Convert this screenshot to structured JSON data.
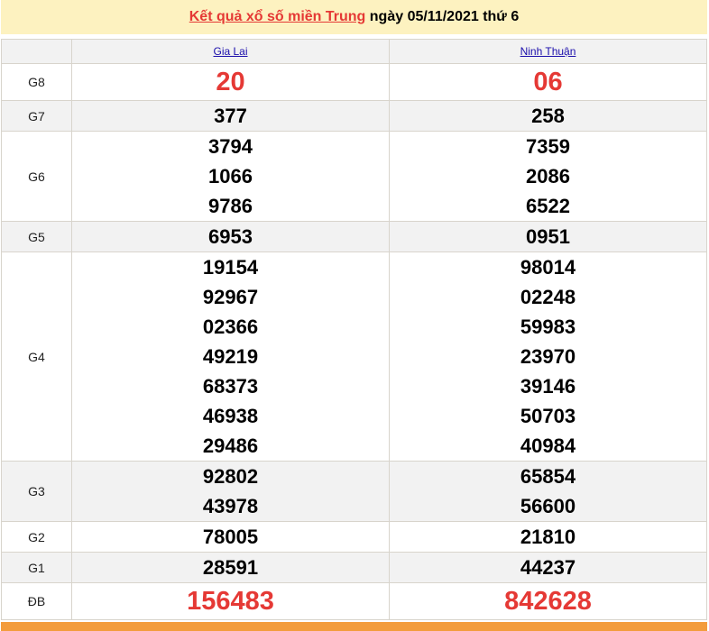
{
  "header": {
    "title_link": "Kết quả xổ số miền Trung",
    "title_rest": " ngày 05/11/2021 thứ 6"
  },
  "provinces": [
    "Gia Lai",
    "Ninh Thuận"
  ],
  "rows": [
    {
      "label": "G8",
      "highlight": true,
      "values": [
        [
          "20"
        ],
        [
          "06"
        ]
      ]
    },
    {
      "label": "G7",
      "values": [
        [
          "377"
        ],
        [
          "258"
        ]
      ]
    },
    {
      "label": "G6",
      "values": [
        [
          "3794",
          "1066",
          "9786"
        ],
        [
          "7359",
          "2086",
          "6522"
        ]
      ]
    },
    {
      "label": "G5",
      "values": [
        [
          "6953"
        ],
        [
          "0951"
        ]
      ]
    },
    {
      "label": "G4",
      "values": [
        [
          "19154",
          "92967",
          "02366",
          "49219",
          "68373",
          "46938",
          "29486"
        ],
        [
          "98014",
          "02248",
          "59983",
          "23970",
          "39146",
          "50703",
          "40984"
        ]
      ]
    },
    {
      "label": "G3",
      "values": [
        [
          "92802",
          "43978"
        ],
        [
          "65854",
          "56600"
        ]
      ]
    },
    {
      "label": "G2",
      "values": [
        [
          "78005"
        ],
        [
          "21810"
        ]
      ]
    },
    {
      "label": "G1",
      "values": [
        [
          "28591"
        ],
        [
          "44237"
        ]
      ]
    },
    {
      "label": "ĐB",
      "highlight": true,
      "values": [
        [
          "156483"
        ],
        [
          "842628"
        ]
      ]
    }
  ],
  "colors": {
    "accent_red": "#e53935",
    "header_bg": "#fdf2c0",
    "row_alt": "#f2f2f2",
    "footer_orange": "#f39c3c"
  }
}
